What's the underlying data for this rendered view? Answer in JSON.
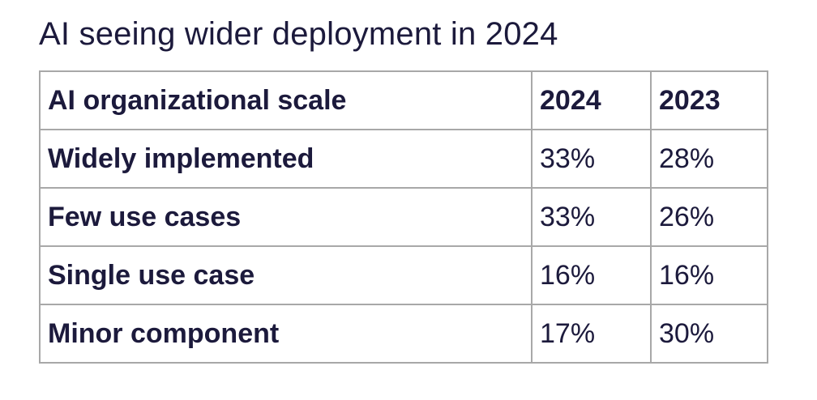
{
  "title": "AI seeing wider deployment in 2024",
  "chart_data": {
    "type": "table",
    "title": "AI seeing wider deployment in 2024",
    "columns": [
      "AI organizational scale",
      "2024",
      "2023"
    ],
    "rows": [
      {
        "label": "Widely implemented",
        "values": [
          "33%",
          "28%"
        ]
      },
      {
        "label": "Few use cases",
        "values": [
          "33%",
          "26%"
        ]
      },
      {
        "label": "Single use case",
        "values": [
          "16%",
          "16%"
        ]
      },
      {
        "label": "Minor component",
        "values": [
          "17%",
          "30%"
        ]
      }
    ],
    "series": [
      {
        "name": "2024",
        "values": [
          33,
          33,
          16,
          17
        ]
      },
      {
        "name": "2023",
        "values": [
          28,
          26,
          16,
          30
        ]
      }
    ],
    "categories": [
      "Widely implemented",
      "Few use cases",
      "Single use case",
      "Minor component"
    ],
    "unit": "%"
  }
}
